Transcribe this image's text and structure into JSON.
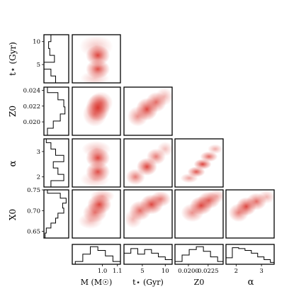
{
  "chart_data": {
    "type": "corner",
    "colormap": "Reds",
    "accent_color": "#d7261e",
    "frame_color": "#000000",
    "rows": [
      "t_star",
      "Z0",
      "alpha",
      "X0"
    ],
    "columns": [
      "M",
      "t_star",
      "Z0",
      "alpha"
    ],
    "parameters": {
      "M": {
        "axis_label": "M (M☉)",
        "range": [
          0.8,
          1.12
        ],
        "ticks": [
          1.0,
          1.1
        ],
        "tick_labels": [
          "1.0",
          "1.1"
        ]
      },
      "t_star": {
        "axis_label": "t⋆ (Gyr)",
        "range": [
          1.0,
          11.5
        ],
        "ticks": [
          5,
          10
        ],
        "tick_labels": [
          "5",
          "10"
        ]
      },
      "Z0": {
        "axis_label": "Z0",
        "range": [
          0.0183,
          0.0244
        ],
        "ticks": [
          0.02,
          0.022,
          0.024
        ],
        "tick_labels": [
          "0.020",
          "0.022",
          "0.024"
        ],
        "bottom_ticks": [
          0.02,
          0.0225
        ],
        "bottom_tick_labels": [
          "0.0200",
          "0.0225"
        ]
      },
      "alpha": {
        "axis_label": "α",
        "range": [
          1.6,
          3.5
        ],
        "ticks": [
          2,
          3
        ],
        "tick_labels": [
          "2",
          "3"
        ]
      },
      "X0": {
        "axis_label": "X0",
        "range": [
          0.634,
          0.75
        ],
        "ticks": [
          0.65,
          0.7,
          0.75
        ],
        "tick_labels": [
          "0.65",
          "0.70",
          "0.75"
        ]
      }
    },
    "row_marginals": [
      {
        "param": "t_star",
        "bins": [
          1.0,
          2.5,
          4.0,
          5.5,
          7.0,
          8.5,
          10.0,
          11.5
        ],
        "values": [
          0.5,
          0.3,
          0.0,
          0.45,
          0.25,
          0.2,
          0.3
        ]
      },
      {
        "param": "Z0",
        "bins": [
          0.0183,
          0.0192,
          0.0201,
          0.021,
          0.0219,
          0.0228,
          0.0237,
          0.0244
        ],
        "values": [
          0.15,
          0.4,
          0.7,
          0.9,
          0.85,
          0.6,
          0.15
        ]
      },
      {
        "param": "alpha",
        "bins": [
          1.6,
          1.85,
          2.1,
          2.35,
          2.6,
          2.85,
          3.1,
          3.35,
          3.5
        ],
        "values": [
          0.3,
          0.85,
          0.6,
          0.4,
          0.85,
          0.5,
          0.3,
          0.1
        ]
      },
      {
        "param": "X0",
        "bins": [
          0.634,
          0.646,
          0.658,
          0.67,
          0.682,
          0.694,
          0.706,
          0.718,
          0.73,
          0.742,
          0.75
        ],
        "values": [
          0.05,
          0.1,
          0.3,
          0.5,
          0.6,
          0.85,
          0.8,
          0.95,
          0.7,
          0.15
        ]
      }
    ],
    "column_marginals": [
      {
        "param": "M",
        "bins": [
          0.82,
          0.87,
          0.92,
          0.97,
          1.02,
          1.07,
          1.12
        ],
        "values": [
          0.15,
          0.55,
          0.95,
          0.75,
          0.45,
          0.15
        ]
      },
      {
        "param": "t_star",
        "bins": [
          1.0,
          2.5,
          4.0,
          5.5,
          7.0,
          8.5,
          10.0,
          11.5
        ],
        "values": [
          0.6,
          0.85,
          0.55,
          0.8,
          0.6,
          0.4,
          0.25
        ]
      },
      {
        "param": "Z0",
        "bins": [
          0.0183,
          0.0192,
          0.0201,
          0.021,
          0.0219,
          0.0228,
          0.0237,
          0.0244
        ],
        "values": [
          0.15,
          0.5,
          0.8,
          0.95,
          0.7,
          0.4,
          0.15
        ]
      },
      {
        "param": "alpha",
        "bins": [
          1.6,
          1.85,
          2.1,
          2.35,
          2.6,
          2.85,
          3.1,
          3.35,
          3.5
        ],
        "values": [
          0.35,
          0.9,
          0.85,
          0.75,
          0.6,
          0.4,
          0.25,
          0.1
        ]
      }
    ],
    "density_panels": [
      {
        "x": "M",
        "y": "t_star",
        "points": [
          {
            "x": 0.97,
            "y": 7.0,
            "w": 1.0,
            "sx": 0.05,
            "sy": 1.4
          },
          {
            "x": 0.97,
            "y": 4.0,
            "w": 0.95,
            "sx": 0.05,
            "sy": 1.3
          },
          {
            "x": 0.96,
            "y": 9.0,
            "w": 0.3,
            "sx": 0.07,
            "sy": 1.5
          },
          {
            "x": 0.95,
            "y": 2.0,
            "w": 0.3,
            "sx": 0.06,
            "sy": 1.0
          }
        ]
      },
      {
        "x": "M",
        "y": "Z0",
        "points": [
          {
            "x": 0.97,
            "y": 0.0218,
            "w": 1.0,
            "sx": 0.05,
            "sy": 0.0011
          },
          {
            "x": 0.99,
            "y": 0.0224,
            "w": 0.6,
            "sx": 0.05,
            "sy": 0.0009
          },
          {
            "x": 0.95,
            "y": 0.021,
            "w": 0.6,
            "sx": 0.05,
            "sy": 0.001
          }
        ]
      },
      {
        "x": "t_star",
        "y": "Z0",
        "points": [
          {
            "x": 4.0,
            "y": 0.0207,
            "w": 0.6,
            "sx": 1.4,
            "sy": 0.0008
          },
          {
            "x": 6.0,
            "y": 0.0216,
            "w": 1.0,
            "sx": 1.5,
            "sy": 0.0009
          },
          {
            "x": 8.0,
            "y": 0.0225,
            "w": 0.8,
            "sx": 1.4,
            "sy": 0.0008
          },
          {
            "x": 9.8,
            "y": 0.0232,
            "w": 0.4,
            "sx": 1.2,
            "sy": 0.0007
          }
        ]
      },
      {
        "x": "M",
        "y": "alpha",
        "points": [
          {
            "x": 0.97,
            "y": 2.75,
            "w": 1.0,
            "sx": 0.05,
            "sy": 0.25
          },
          {
            "x": 0.97,
            "y": 2.2,
            "w": 0.95,
            "sx": 0.05,
            "sy": 0.25
          },
          {
            "x": 0.96,
            "y": 3.1,
            "w": 0.35,
            "sx": 0.06,
            "sy": 0.2
          },
          {
            "x": 0.95,
            "y": 1.9,
            "w": 0.3,
            "sx": 0.06,
            "sy": 0.2
          }
        ]
      },
      {
        "x": "t_star",
        "y": "alpha",
        "points": [
          {
            "x": 3.5,
            "y": 2.0,
            "w": 0.7,
            "sx": 1.3,
            "sy": 0.2
          },
          {
            "x": 6.0,
            "y": 2.4,
            "w": 1.0,
            "sx": 1.4,
            "sy": 0.22
          },
          {
            "x": 8.0,
            "y": 2.8,
            "w": 0.7,
            "sx": 1.3,
            "sy": 0.2
          },
          {
            "x": 10.0,
            "y": 3.1,
            "w": 0.35,
            "sx": 1.1,
            "sy": 0.18
          }
        ]
      },
      {
        "x": "Z0",
        "y": "alpha",
        "points": [
          {
            "x": 0.0201,
            "y": 1.95,
            "w": 0.5,
            "sx": 0.0007,
            "sy": 0.12
          },
          {
            "x": 0.021,
            "y": 2.2,
            "w": 0.9,
            "sx": 0.0007,
            "sy": 0.13
          },
          {
            "x": 0.0218,
            "y": 2.5,
            "w": 1.0,
            "sx": 0.0007,
            "sy": 0.13
          },
          {
            "x": 0.0226,
            "y": 2.8,
            "w": 0.8,
            "sx": 0.0007,
            "sy": 0.13
          },
          {
            "x": 0.0234,
            "y": 3.1,
            "w": 0.45,
            "sx": 0.0006,
            "sy": 0.12
          }
        ]
      },
      {
        "x": "M",
        "y": "X0",
        "points": [
          {
            "x": 0.98,
            "y": 0.715,
            "w": 1.0,
            "sx": 0.05,
            "sy": 0.015
          },
          {
            "x": 0.95,
            "y": 0.695,
            "w": 0.75,
            "sx": 0.05,
            "sy": 0.015
          },
          {
            "x": 1.0,
            "y": 0.735,
            "w": 0.45,
            "sx": 0.05,
            "sy": 0.01
          },
          {
            "x": 0.92,
            "y": 0.675,
            "w": 0.35,
            "sx": 0.05,
            "sy": 0.012
          }
        ]
      },
      {
        "x": "t_star",
        "y": "X0",
        "points": [
          {
            "x": 4.5,
            "y": 0.7,
            "w": 0.8,
            "sx": 1.5,
            "sy": 0.015
          },
          {
            "x": 7.0,
            "y": 0.715,
            "w": 1.0,
            "sx": 1.6,
            "sy": 0.015
          },
          {
            "x": 9.0,
            "y": 0.728,
            "w": 0.7,
            "sx": 1.4,
            "sy": 0.012
          },
          {
            "x": 3.0,
            "y": 0.68,
            "w": 0.4,
            "sx": 1.2,
            "sy": 0.014
          }
        ]
      },
      {
        "x": "Z0",
        "y": "X0",
        "points": [
          {
            "x": 0.0205,
            "y": 0.695,
            "w": 0.6,
            "sx": 0.0009,
            "sy": 0.014
          },
          {
            "x": 0.0216,
            "y": 0.712,
            "w": 1.0,
            "sx": 0.0009,
            "sy": 0.014
          },
          {
            "x": 0.0226,
            "y": 0.725,
            "w": 0.85,
            "sx": 0.0009,
            "sy": 0.013
          },
          {
            "x": 0.0236,
            "y": 0.735,
            "w": 0.4,
            "sx": 0.0008,
            "sy": 0.01
          }
        ]
      },
      {
        "x": "alpha",
        "y": "X0",
        "points": [
          {
            "x": 2.1,
            "y": 0.695,
            "w": 0.7,
            "sx": 0.25,
            "sy": 0.014
          },
          {
            "x": 2.4,
            "y": 0.71,
            "w": 1.0,
            "sx": 0.25,
            "sy": 0.014
          },
          {
            "x": 2.8,
            "y": 0.722,
            "w": 0.8,
            "sx": 0.25,
            "sy": 0.013
          },
          {
            "x": 3.2,
            "y": 0.733,
            "w": 0.4,
            "sx": 0.22,
            "sy": 0.01
          }
        ]
      }
    ]
  }
}
